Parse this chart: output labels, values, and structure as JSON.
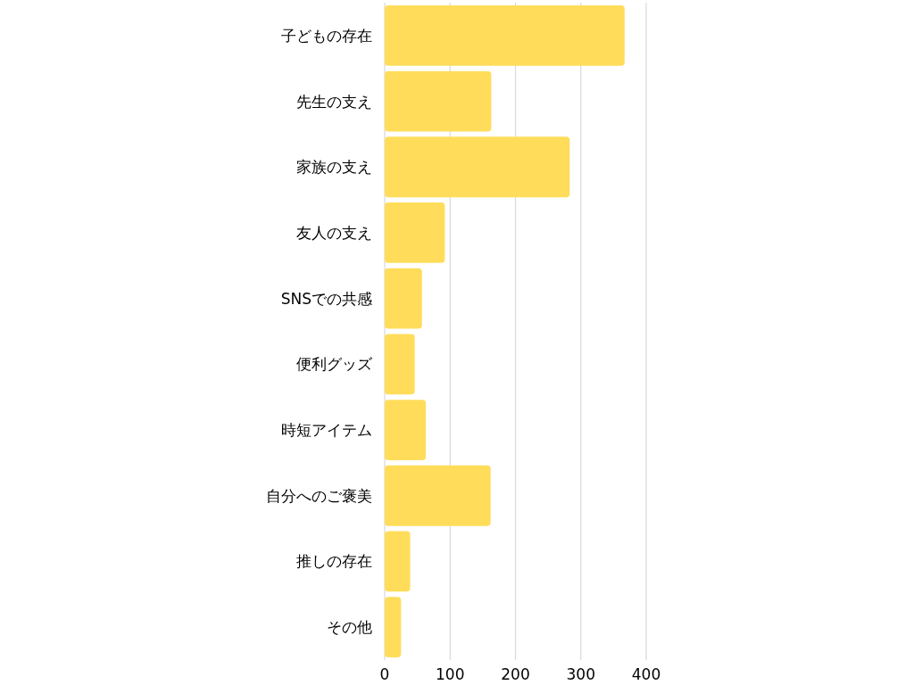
{
  "chart_data": {
    "type": "bar",
    "orientation": "horizontal",
    "categories": [
      "子どもの存在",
      "先生の支え",
      "家族の支え",
      "友人の支え",
      "SNSでの共感",
      "便利グッズ",
      "時短アイテム",
      "自分へのご褒美",
      "推しの存在",
      "その他"
    ],
    "values": [
      367,
      163,
      283,
      92,
      57,
      46,
      63,
      162,
      39,
      25
    ],
    "color": "#ffdd5a",
    "xlim": [
      0,
      400
    ],
    "xticks": [
      0,
      100,
      200,
      300,
      400
    ],
    "grid": "x"
  }
}
